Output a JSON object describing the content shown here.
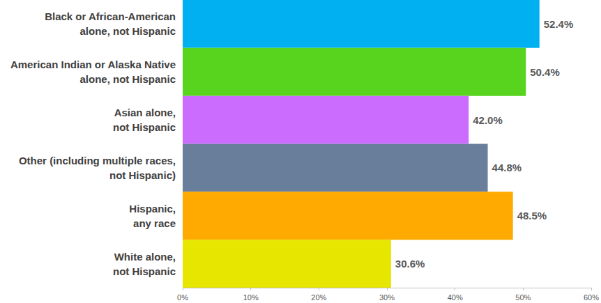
{
  "chart_data": {
    "type": "bar",
    "orientation": "horizontal",
    "categories": [
      "Black or African-American\nalone, not Hispanic",
      "American Indian or Alaska Native\nalone, not Hispanic",
      "Asian alone,\nnot Hispanic",
      "Other (including multiple races,\nnot Hispanic)",
      "Hispanic,\nany race",
      "White alone,\nnot Hispanic"
    ],
    "values": [
      52.4,
      50.4,
      42.0,
      44.8,
      48.5,
      30.6
    ],
    "value_labels": [
      "52.4%",
      "50.4%",
      "42.0%",
      "44.8%",
      "48.5%",
      "30.6%"
    ],
    "colors": [
      "#00B0F0",
      "#58D31E",
      "#CC6CFF",
      "#687E9B",
      "#FFAA00",
      "#E6E600"
    ],
    "data_labels": true,
    "grid": false,
    "xlim": [
      0,
      60
    ],
    "xticks": [
      {
        "value": 0,
        "label": "0%"
      },
      {
        "value": 10,
        "label": "10%"
      },
      {
        "value": 20,
        "label": "20%"
      },
      {
        "value": 30,
        "label": "30%"
      },
      {
        "value": 40,
        "label": "40%"
      },
      {
        "value": 50,
        "label": "50%"
      },
      {
        "value": 60,
        "label": "60%"
      }
    ]
  }
}
